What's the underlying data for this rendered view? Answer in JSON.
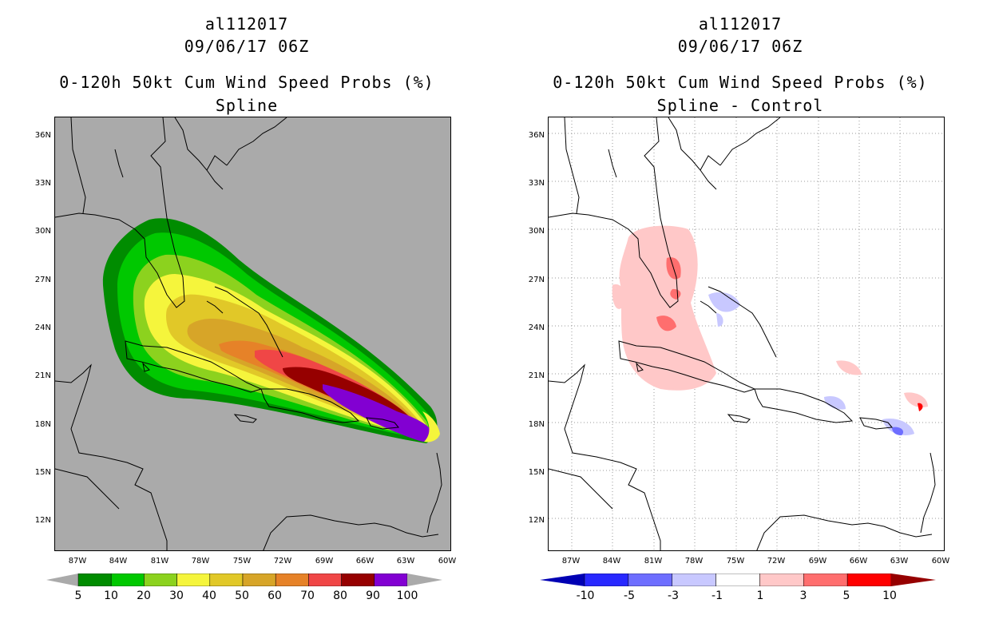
{
  "left": {
    "title1": "al112017",
    "title2": "09/06/17 06Z",
    "title3": "0-120h 50kt Cum Wind Speed Probs (%)",
    "title4": "Spline",
    "background": "#aaaaaa",
    "colorbar": {
      "colors": [
        "#008c00",
        "#00c800",
        "#8cd21e",
        "#f5f53c",
        "#e1c828",
        "#d7a528",
        "#e68228",
        "#f04646",
        "#960000",
        "#8200d2"
      ],
      "labels": [
        "5",
        "10",
        "20",
        "30",
        "40",
        "50",
        "60",
        "70",
        "80",
        "90",
        "100"
      ]
    }
  },
  "right": {
    "title1": "al112017",
    "title2": "09/06/17 06Z",
    "title3": "0-120h 50kt Cum Wind Speed Probs (%)",
    "title4": "Spline - Control",
    "background": "#ffffff",
    "colorbar": {
      "colors": [
        "#0000b4",
        "#2828ff",
        "#6e6eff",
        "#c8c8ff",
        "#ffffff",
        "#ffc8c8",
        "#ff6e6e",
        "#ff0000",
        "#960000"
      ],
      "labels": [
        "-10",
        "-5",
        "-3",
        "-1",
        "1",
        "3",
        "5",
        "10"
      ]
    }
  },
  "axes": {
    "lat_labels": [
      "36N",
      "33N",
      "30N",
      "27N",
      "24N",
      "21N",
      "18N",
      "15N",
      "12N"
    ],
    "lon_labels": [
      "87W",
      "84W",
      "81W",
      "78W",
      "75W",
      "72W",
      "69W",
      "66W",
      "63W",
      "60W"
    ]
  }
}
